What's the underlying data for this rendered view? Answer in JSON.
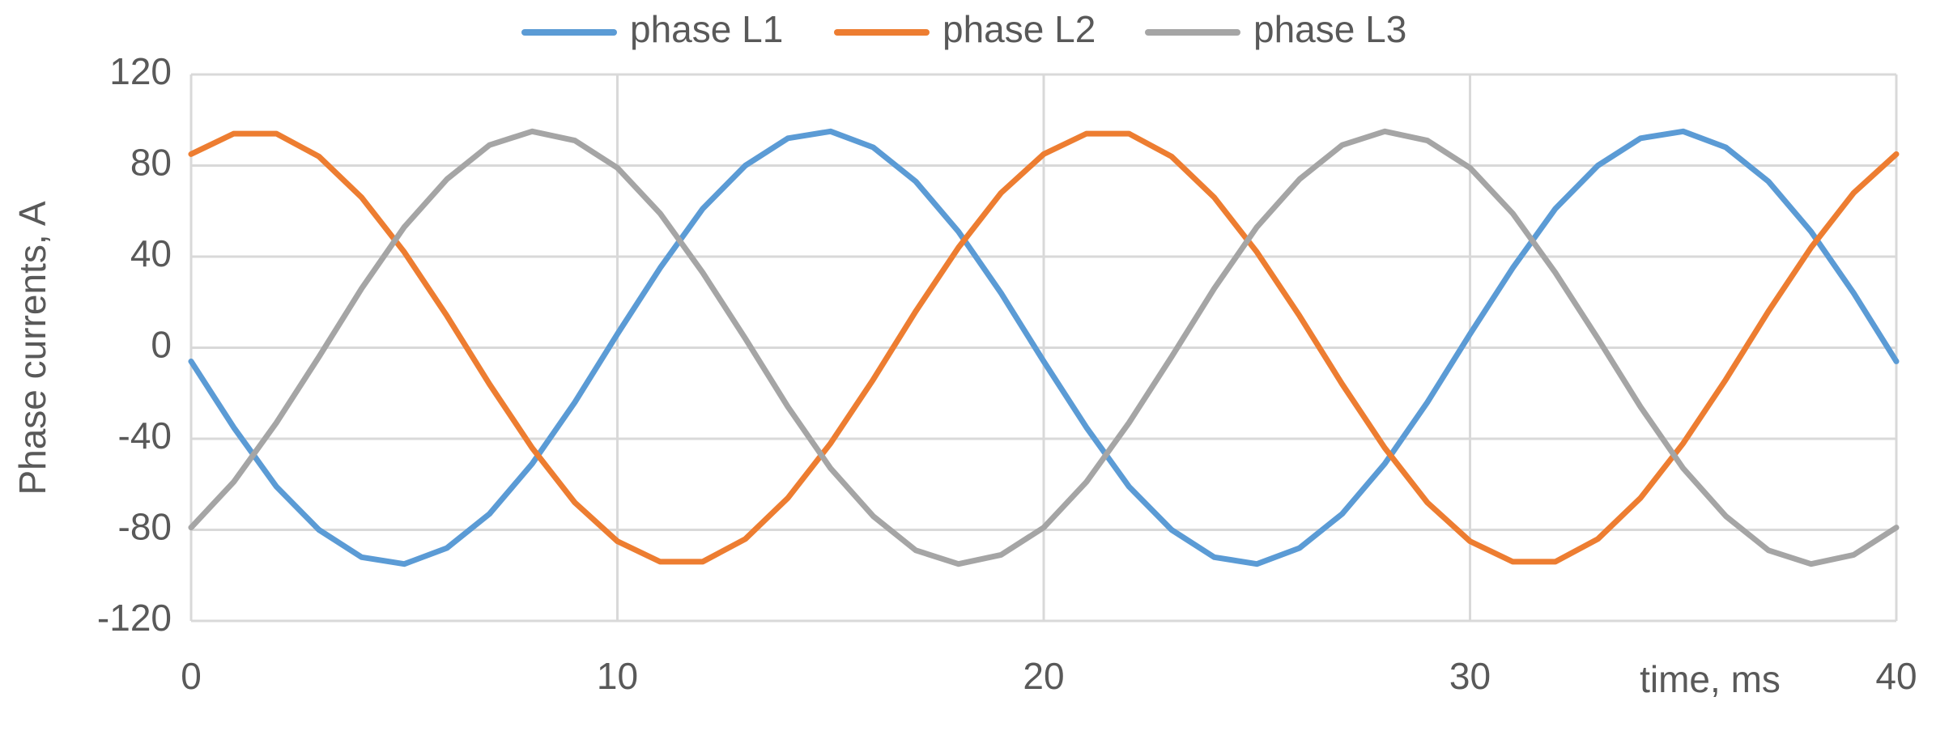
{
  "chart_data": {
    "type": "line",
    "y_label": "Phase currents, A",
    "x_label": "time, ms",
    "x": [
      0,
      1,
      2,
      3,
      4,
      5,
      6,
      7,
      8,
      9,
      10,
      11,
      12,
      13,
      14,
      15,
      16,
      17,
      18,
      19,
      20,
      21,
      22,
      23,
      24,
      25,
      26,
      27,
      28,
      29,
      30,
      31,
      32,
      33,
      34,
      35,
      36,
      37,
      38,
      39,
      40
    ],
    "series": [
      {
        "name": "phase L1",
        "color": "#5b9bd5",
        "values": [
          -6,
          -35,
          -61,
          -80,
          -92,
          -95,
          -88,
          -73,
          -51,
          -24,
          6,
          35,
          61,
          80,
          92,
          95,
          88,
          73,
          51,
          24,
          -6,
          -35,
          -61,
          -80,
          -92,
          -95,
          -88,
          -73,
          -51,
          -24,
          6,
          35,
          61,
          80,
          92,
          95,
          88,
          73,
          51,
          24,
          -6
        ]
      },
      {
        "name": "phase L2",
        "color": "#ed7d31",
        "values": [
          85,
          94,
          94,
          84,
          66,
          42,
          14,
          -16,
          -44,
          -68,
          -85,
          -94,
          -94,
          -84,
          -66,
          -42,
          -14,
          16,
          44,
          68,
          85,
          94,
          94,
          84,
          66,
          42,
          14,
          -16,
          -44,
          -68,
          -85,
          -94,
          -94,
          -84,
          -66,
          -42,
          -14,
          16,
          44,
          68,
          85
        ]
      },
      {
        "name": "phase L3",
        "color": "#a5a5a5",
        "values": [
          -79,
          -59,
          -33,
          -4,
          26,
          53,
          74,
          89,
          95,
          91,
          79,
          59,
          33,
          4,
          -26,
          -53,
          -74,
          -89,
          -95,
          -91,
          -79,
          -59,
          -33,
          -4,
          26,
          53,
          74,
          89,
          95,
          91,
          79,
          59,
          33,
          4,
          -26,
          -53,
          -74,
          -89,
          -95,
          -91,
          -79
        ]
      }
    ],
    "xlim": [
      0,
      40
    ],
    "xticks": [
      0,
      10,
      20,
      30,
      40
    ],
    "ylim": [
      -120,
      120
    ],
    "yticks": [
      -120,
      -80,
      -40,
      0,
      40,
      80,
      120
    ],
    "grid": true,
    "legend": "top"
  }
}
